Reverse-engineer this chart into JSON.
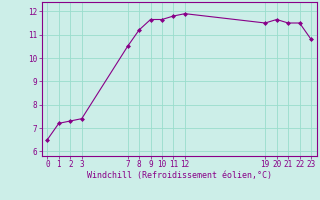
{
  "x": [
    0,
    1,
    2,
    3,
    7,
    8,
    9,
    10,
    11,
    12,
    19,
    20,
    21,
    22,
    23
  ],
  "y": [
    6.5,
    7.2,
    7.3,
    7.4,
    10.5,
    11.2,
    11.65,
    11.65,
    11.8,
    11.9,
    11.5,
    11.65,
    11.5,
    11.5,
    10.8
  ],
  "line_color": "#880088",
  "marker": "D",
  "marker_size": 2.0,
  "background_color": "#cceee8",
  "grid_color": "#99ddcc",
  "xlabel": "Windchill (Refroidissement éolien,°C)",
  "xlim": [
    -0.5,
    23.5
  ],
  "ylim": [
    5.8,
    12.4
  ],
  "yticks": [
    6,
    7,
    8,
    9,
    10,
    11,
    12
  ],
  "xticks": [
    0,
    1,
    2,
    3,
    7,
    8,
    9,
    10,
    11,
    12,
    19,
    20,
    21,
    22,
    23
  ],
  "tick_color": "#880088",
  "label_color": "#880088",
  "tick_fontsize": 5.5,
  "label_fontsize": 6.0
}
